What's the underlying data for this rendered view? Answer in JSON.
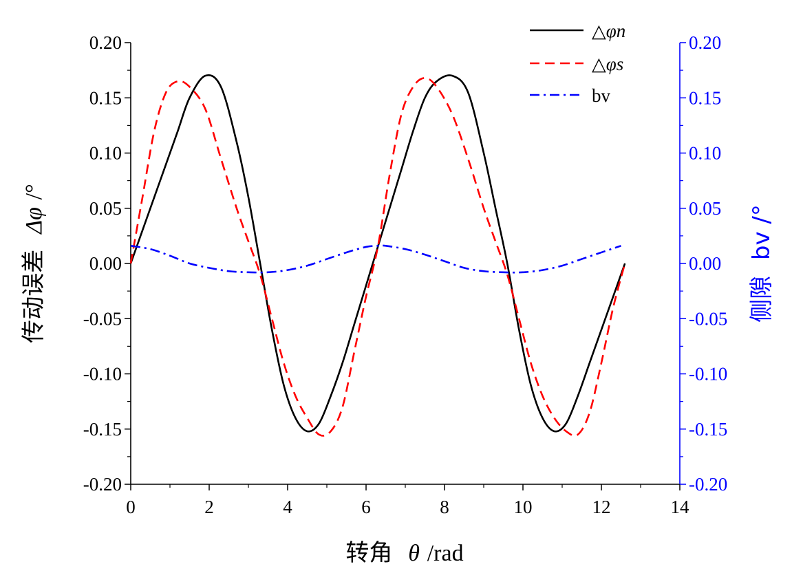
{
  "chart_data": {
    "type": "line",
    "x_unit_label": "转角 θ/rad",
    "xlabel_prefix": "转角",
    "xlabel_symbol": "θ",
    "xlabel_unit": "/rad",
    "ylabel_left_prefix": "传动误差",
    "ylabel_left_symbol": "Δφ",
    "ylabel_left_unit": "/°",
    "ylabel_right_prefix": "侧隙",
    "ylabel_right_symbol": "bv",
    "ylabel_right_unit": "/°",
    "xlim": [
      0,
      14
    ],
    "ylim_left": [
      -0.2,
      0.2
    ],
    "ylim_right": [
      -0.2,
      0.2
    ],
    "x_ticks": [
      "0",
      "2",
      "4",
      "6",
      "8",
      "10",
      "12",
      "14"
    ],
    "y_ticks": [
      "-0.20",
      "-0.15",
      "-0.10",
      "-0.05",
      "0.00",
      "0.05",
      "0.10",
      "0.15",
      "0.20"
    ],
    "legend_position": "top-right",
    "grid": false,
    "series": [
      {
        "name": "Δφn",
        "legend_prefix": "△",
        "legend_symbol": "φn",
        "axis": "left",
        "color": "#000000",
        "style": "solid",
        "x": [
          0,
          0.3,
          0.6,
          0.9,
          1.2,
          1.5,
          1.9,
          2.3,
          2.7,
          3.0,
          3.3,
          3.6,
          3.9,
          4.2,
          4.5,
          4.8,
          5.1,
          5.4,
          5.7,
          6.0,
          6.3,
          6.6,
          6.9,
          7.2,
          7.5,
          7.8,
          8.2,
          8.6,
          9.0,
          9.3,
          9.6,
          9.9,
          10.2,
          10.5,
          10.8,
          11.1,
          11.4,
          11.7,
          12.0,
          12.3,
          12.6
        ],
        "values": [
          0.0,
          0.03,
          0.06,
          0.09,
          0.12,
          0.15,
          0.17,
          0.16,
          0.11,
          0.06,
          0.0,
          -0.06,
          -0.11,
          -0.14,
          -0.152,
          -0.145,
          -0.12,
          -0.09,
          -0.055,
          -0.02,
          0.015,
          0.05,
          0.085,
          0.12,
          0.15,
          0.165,
          0.17,
          0.155,
          0.1,
          0.05,
          0.0,
          -0.06,
          -0.11,
          -0.14,
          -0.152,
          -0.145,
          -0.12,
          -0.09,
          -0.06,
          -0.03,
          0.0
        ]
      },
      {
        "name": "Δφs",
        "legend_prefix": "△",
        "legend_symbol": "φs",
        "axis": "left",
        "color": "#ff0000",
        "style": "dashed",
        "x": [
          0,
          0.3,
          0.6,
          0.9,
          1.2,
          1.5,
          1.9,
          2.3,
          2.7,
          3.0,
          3.3,
          3.6,
          3.9,
          4.2,
          4.5,
          4.8,
          5.1,
          5.4,
          5.7,
          6.0,
          6.3,
          6.6,
          6.9,
          7.2,
          7.5,
          7.8,
          8.2,
          8.6,
          9.0,
          9.3,
          9.6,
          9.9,
          10.2,
          10.5,
          10.8,
          11.1,
          11.4,
          11.7,
          12.0,
          12.3,
          12.6
        ],
        "values": [
          0.0,
          0.06,
          0.12,
          0.155,
          0.165,
          0.16,
          0.14,
          0.095,
          0.05,
          0.02,
          -0.01,
          -0.05,
          -0.09,
          -0.12,
          -0.14,
          -0.155,
          -0.152,
          -0.13,
          -0.08,
          -0.03,
          0.015,
          0.08,
          0.135,
          0.16,
          0.168,
          0.16,
          0.135,
          0.095,
          0.05,
          0.02,
          -0.01,
          -0.05,
          -0.09,
          -0.12,
          -0.14,
          -0.152,
          -0.155,
          -0.135,
          -0.09,
          -0.04,
          0.0
        ]
      },
      {
        "name": "bv",
        "legend_prefix": "",
        "legend_symbol": "bv",
        "axis": "right",
        "color": "#0000ff",
        "style": "dashdot",
        "x": [
          0,
          0.5,
          1.0,
          1.5,
          2.0,
          2.5,
          3.0,
          3.5,
          4.0,
          4.5,
          5.0,
          5.5,
          6.0,
          6.3,
          6.5,
          7.0,
          7.5,
          8.0,
          8.5,
          9.0,
          9.5,
          10.0,
          10.5,
          11.0,
          11.5,
          12.0,
          12.5
        ],
        "values": [
          0.016,
          0.013,
          0.007,
          0.0,
          -0.004,
          -0.007,
          -0.008,
          -0.008,
          -0.006,
          -0.002,
          0.004,
          0.01,
          0.015,
          0.016,
          0.016,
          0.013,
          0.008,
          0.002,
          -0.004,
          -0.007,
          -0.008,
          -0.008,
          -0.006,
          -0.002,
          0.004,
          0.01,
          0.016
        ]
      }
    ]
  },
  "colors": {
    "left_axis": "#000000",
    "right_axis": "#0000ff"
  }
}
